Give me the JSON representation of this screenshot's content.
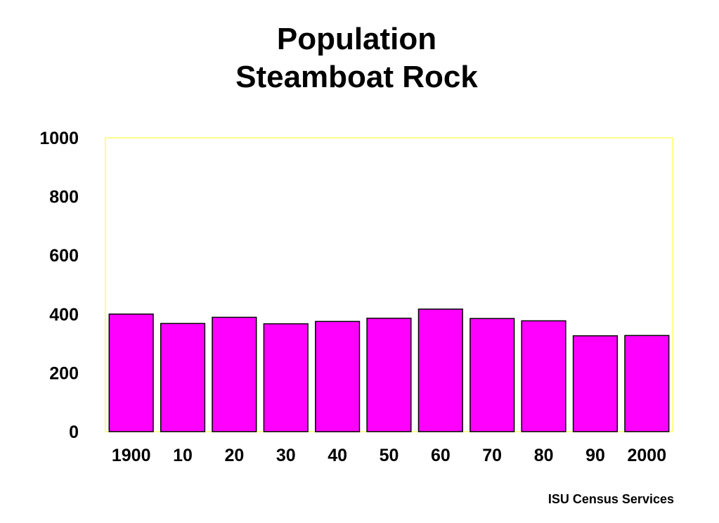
{
  "chart_data": {
    "type": "bar",
    "title": [
      "Population",
      "Steamboat Rock"
    ],
    "xlabel": "",
    "ylabel": "",
    "categories": [
      "1900",
      "10",
      "20",
      "30",
      "40",
      "50",
      "60",
      "70",
      "80",
      "90",
      "2000"
    ],
    "values": [
      400,
      368,
      389,
      367,
      375,
      386,
      417,
      385,
      377,
      326,
      327
    ],
    "ylim": [
      0,
      1000
    ],
    "yticks": [
      0,
      200,
      400,
      600,
      800,
      1000
    ],
    "grid": false,
    "legend": "none"
  },
  "colors": {
    "bar_fill": "#ff00ff",
    "bar_stroke": "#000000",
    "plot_border": "#ffff66"
  },
  "source": "ISU Census Services"
}
